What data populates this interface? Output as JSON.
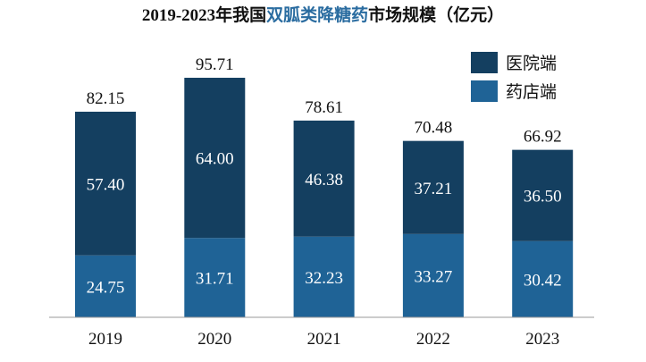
{
  "title": {
    "prefix": "2019-2023年我国",
    "highlight": "双胍类降糖药",
    "suffix": "市场规模（亿元）"
  },
  "colors": {
    "hospital": "#143f60",
    "pharmacy": "#1f6396",
    "title_highlight": "#2a6ca0"
  },
  "chart_data": {
    "type": "bar",
    "stacked": true,
    "title": "2019-2023年我国双胍类降糖药市场规模（亿元）",
    "categories": [
      "2019",
      "2020",
      "2021",
      "2022",
      "2023"
    ],
    "series": [
      {
        "name": "药店端",
        "values": [
          24.75,
          31.71,
          32.23,
          33.27,
          30.42
        ],
        "labels": [
          "24.75",
          "31.71",
          "32.23",
          "33.27",
          "30.42"
        ]
      },
      {
        "name": "医院端",
        "values": [
          57.4,
          64.0,
          46.38,
          37.21,
          36.5
        ],
        "labels": [
          "57.40",
          "64.00",
          "46.38",
          "37.21",
          "36.50"
        ]
      }
    ],
    "totals": [
      82.15,
      95.71,
      78.61,
      70.48,
      66.92
    ],
    "total_labels": [
      "82.15",
      "95.71",
      "78.61",
      "70.48",
      "66.92"
    ],
    "legend": [
      "医院端",
      "药店端"
    ],
    "legend_position": "top-right",
    "ylim": [
      0,
      100
    ],
    "grid": false
  }
}
